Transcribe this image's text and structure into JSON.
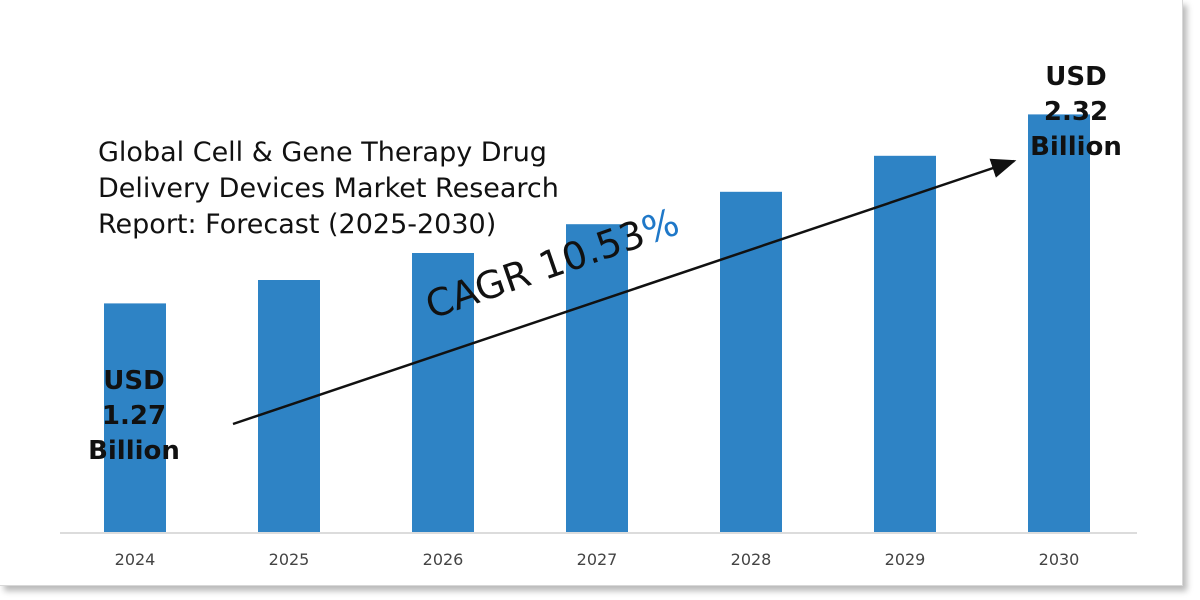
{
  "chart_data": {
    "type": "bar",
    "title": "Global Cell & Gene Therapy Drug\nDelivery Devices Market Research\nReport: Forecast (2025-2030)",
    "categories": [
      "2024",
      "2025",
      "2026",
      "2027",
      "2028",
      "2029",
      "2030"
    ],
    "values": [
      1.27,
      1.4,
      1.55,
      1.71,
      1.89,
      2.09,
      2.32
    ],
    "ylim": [
      0,
      2.5
    ],
    "bar_color": "#2e83c5",
    "grid": false,
    "annotations": {
      "start": {
        "currency": "USD",
        "value": "1.27",
        "unit": "Billion"
      },
      "end": {
        "currency": "USD",
        "value": "2.32",
        "unit": "Billion"
      },
      "cagr_label": "CAGR 10.53",
      "cagr_symbol": "%"
    }
  }
}
